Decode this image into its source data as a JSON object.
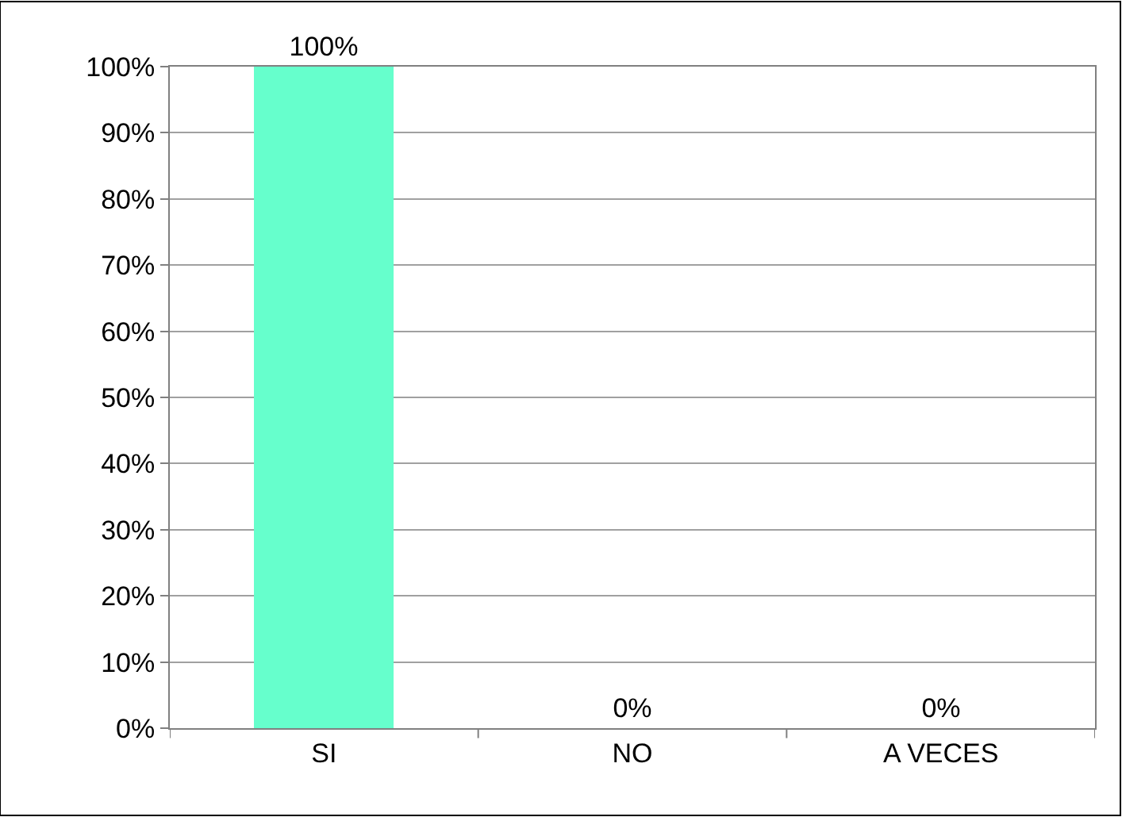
{
  "chart_data": {
    "type": "bar",
    "categories": [
      "SI",
      "NO",
      "A VECES"
    ],
    "values": [
      100,
      0,
      0
    ],
    "color": "#66ffcc",
    "value_labels": [
      "100%",
      "0%",
      "0%"
    ],
    "ylim": [
      0,
      100
    ],
    "yticks": [
      {
        "value": 0,
        "label": "0%"
      },
      {
        "value": 10,
        "label": "10%"
      },
      {
        "value": 20,
        "label": "20%"
      },
      {
        "value": 30,
        "label": "30%"
      },
      {
        "value": 40,
        "label": "40%"
      },
      {
        "value": 50,
        "label": "50%"
      },
      {
        "value": 60,
        "label": "60%"
      },
      {
        "value": 70,
        "label": "70%"
      },
      {
        "value": 80,
        "label": "80%"
      },
      {
        "value": 90,
        "label": "90%"
      },
      {
        "value": 100,
        "label": "100%"
      }
    ],
    "grid": "y",
    "legend": false
  }
}
